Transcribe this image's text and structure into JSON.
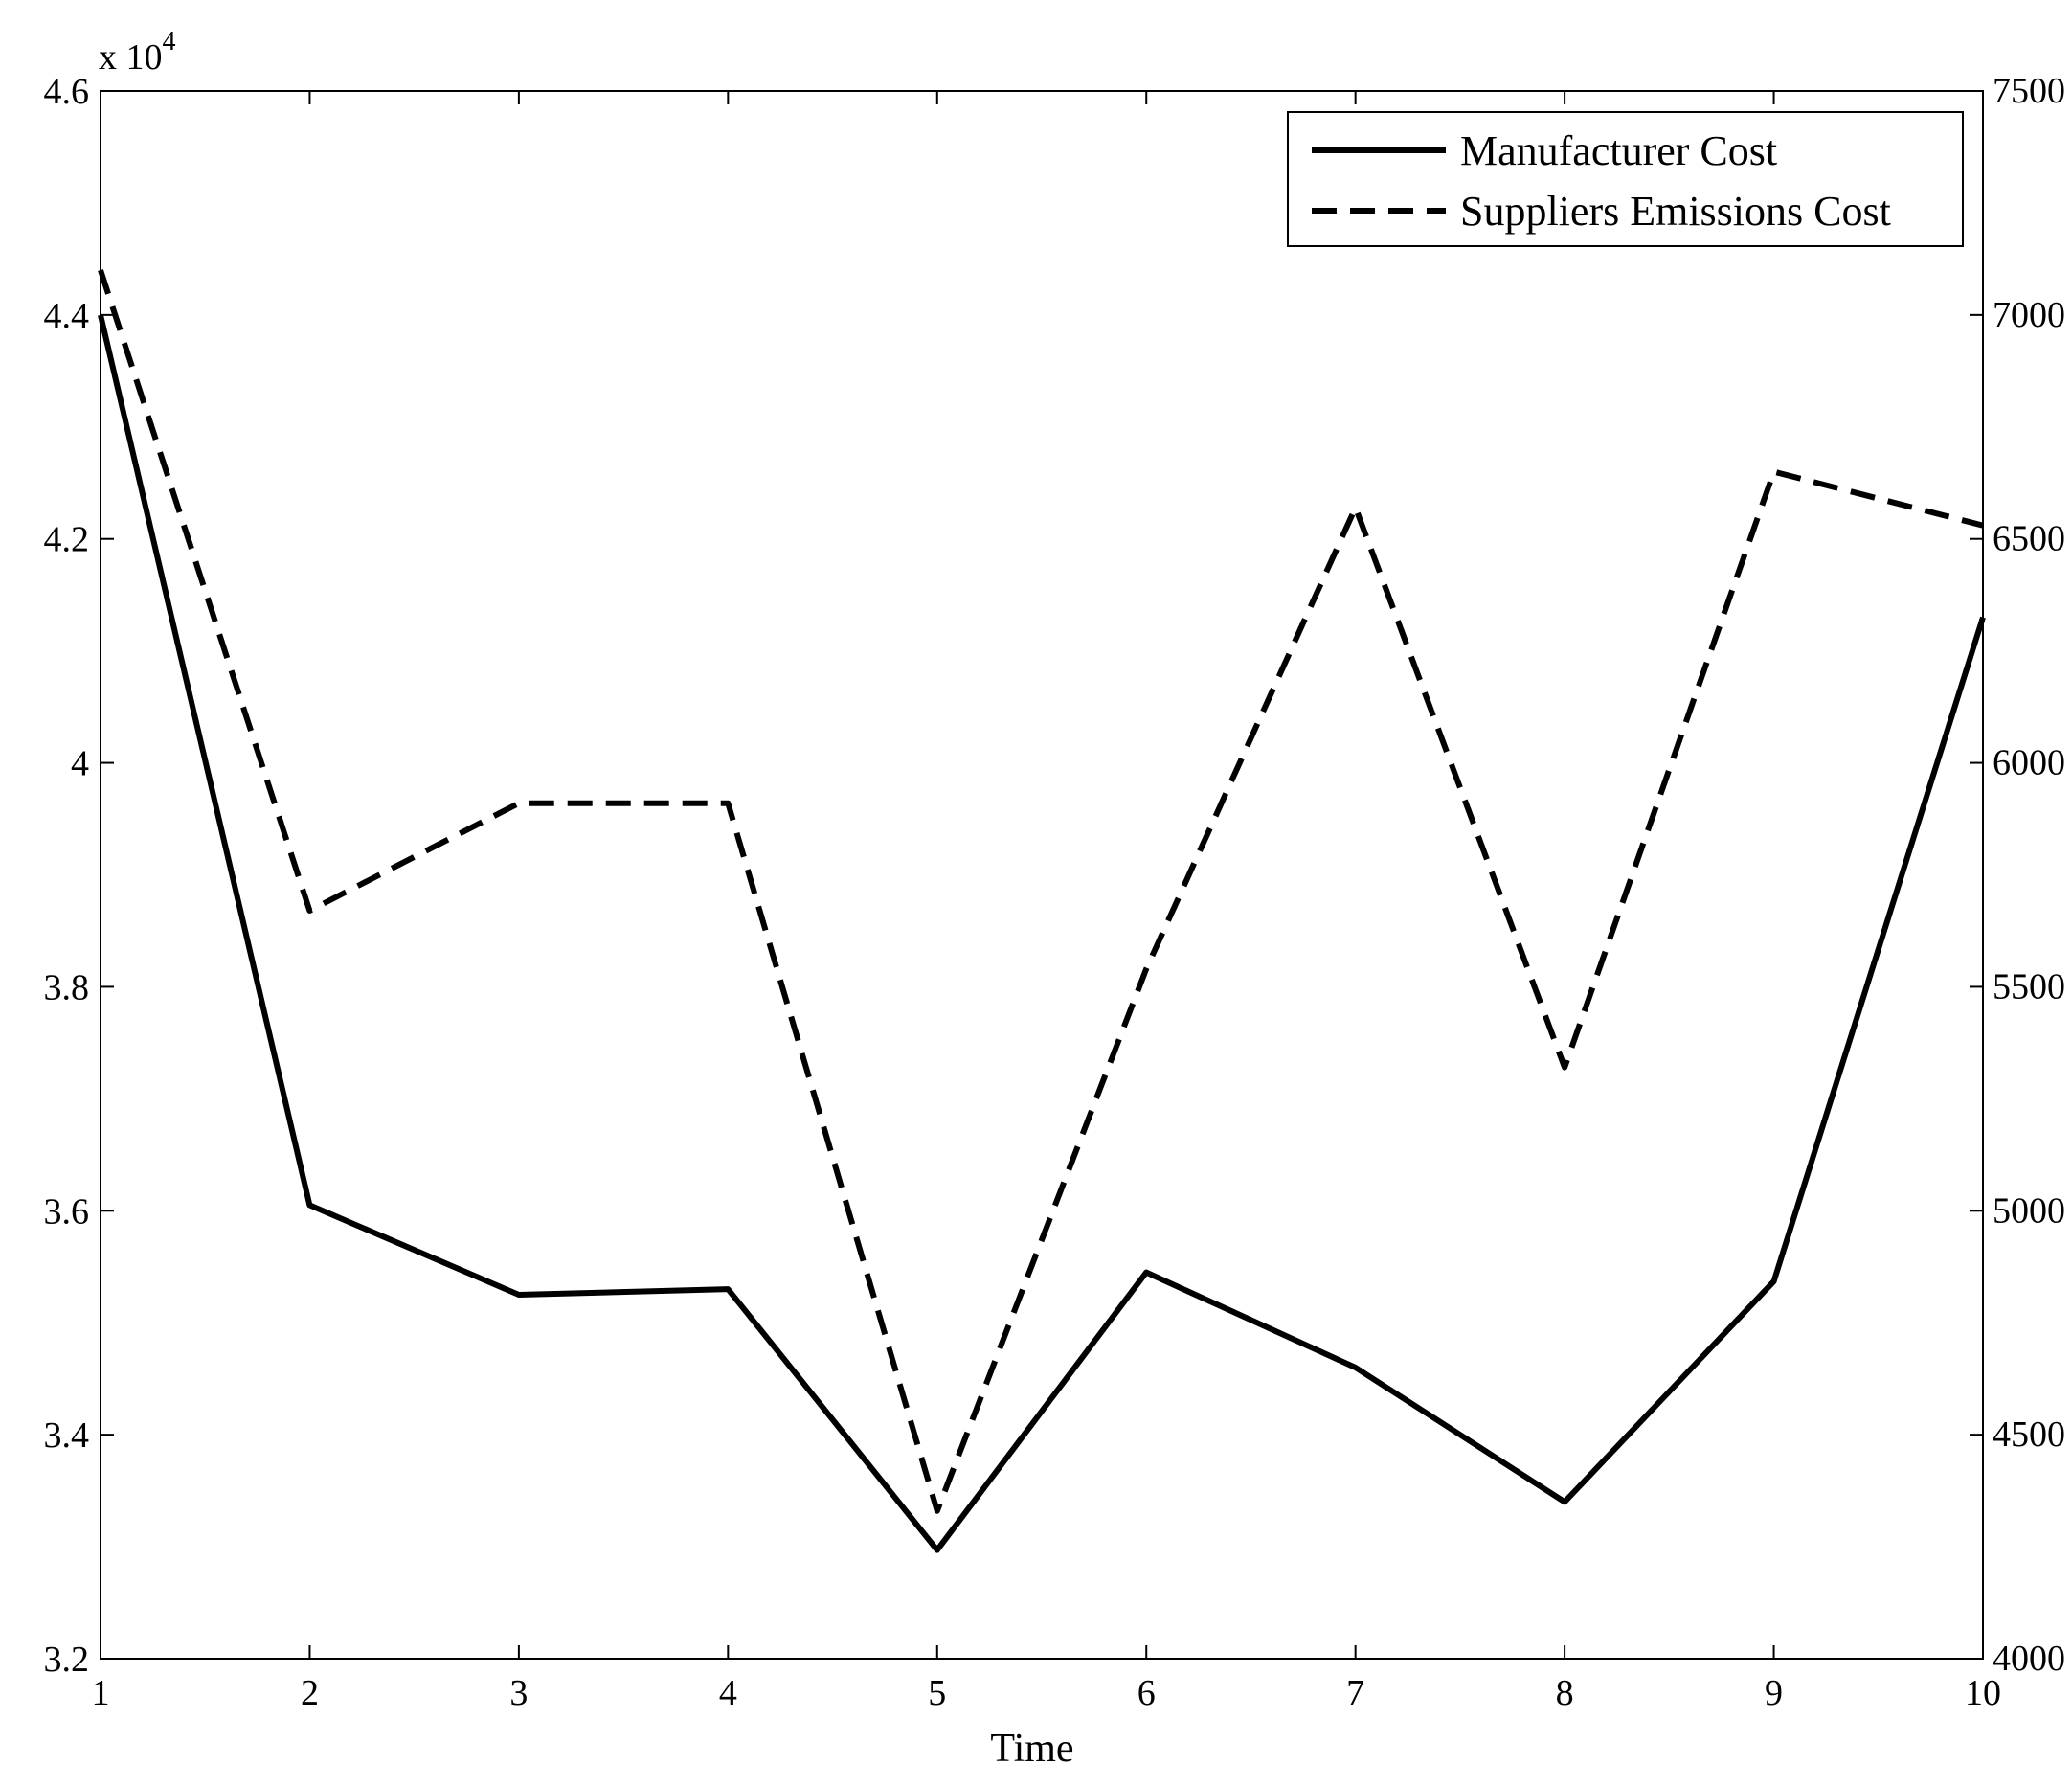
{
  "chart_data": {
    "type": "line",
    "xlabel": "Time",
    "x": [
      1,
      2,
      3,
      4,
      5,
      6,
      7,
      8,
      9,
      10
    ],
    "xlim": [
      1,
      10
    ],
    "y_left": {
      "ylim": [
        32000,
        46000
      ],
      "ticks": [
        "3.2",
        "3.4",
        "3.6",
        "3.8",
        "4",
        "4.2",
        "4.4",
        "4.6"
      ],
      "tick_values": [
        32000,
        34000,
        36000,
        38000,
        40000,
        42000,
        44000,
        46000
      ],
      "exponent_label_base": "x 10",
      "exponent_label_power": "4"
    },
    "y_right": {
      "ylim": [
        4000,
        7500
      ],
      "ticks": [
        "4000",
        "4500",
        "5000",
        "5500",
        "6000",
        "6500",
        "7000",
        "7500"
      ],
      "tick_values": [
        4000,
        4500,
        5000,
        5500,
        6000,
        6500,
        7000,
        7500
      ]
    },
    "series": [
      {
        "name": "Manufacturer Cost",
        "axis": "left",
        "style": "solid",
        "color": "#000000",
        "values": [
          44000,
          36050,
          35250,
          35300,
          32970,
          35450,
          34600,
          33400,
          35370,
          41300
        ]
      },
      {
        "name": "Suppliers Emissions Cost",
        "axis": "right",
        "style": "dashed",
        "color": "#000000",
        "values": [
          7100,
          5670,
          5910,
          5910,
          4330,
          5540,
          6570,
          5320,
          6650,
          6530
        ]
      }
    ],
    "legend_position": "top-right",
    "grid": false
  }
}
